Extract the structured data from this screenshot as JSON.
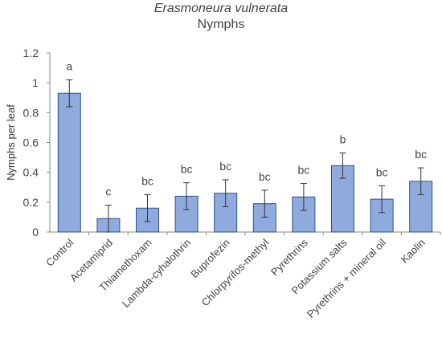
{
  "chart_data": {
    "type": "bar",
    "title": "Erasmoneura vulnerata",
    "subtitle": "Nymphs",
    "xlabel": "",
    "ylabel": "Nymphs per leaf",
    "ylim": [
      0,
      1.2
    ],
    "yticks": [
      "0",
      "0.2",
      "0.4",
      "0.6",
      "0.8",
      "1",
      "1.2"
    ],
    "grid": false,
    "categories": [
      "Control",
      "Acetamiprid",
      "Thiamethoxam",
      "Lambda-cyhalothrin",
      "Buprofezin",
      "Chlorpyrifos-methyl",
      "Pyrethrins",
      "Potassium salts",
      "Pyrethrins + mineral oil",
      "Kaolin"
    ],
    "values": [
      0.93,
      0.09,
      0.16,
      0.24,
      0.26,
      0.19,
      0.235,
      0.445,
      0.22,
      0.34
    ],
    "errors": [
      0.09,
      0.09,
      0.09,
      0.09,
      0.09,
      0.09,
      0.09,
      0.085,
      0.09,
      0.09
    ],
    "letters": [
      "a",
      "c",
      "bc",
      "bc",
      "bc",
      "bc",
      "bc",
      "b",
      "bc",
      "bc"
    ],
    "bar_color": "#8faadc",
    "bar_edge_color": "#2f528f"
  }
}
